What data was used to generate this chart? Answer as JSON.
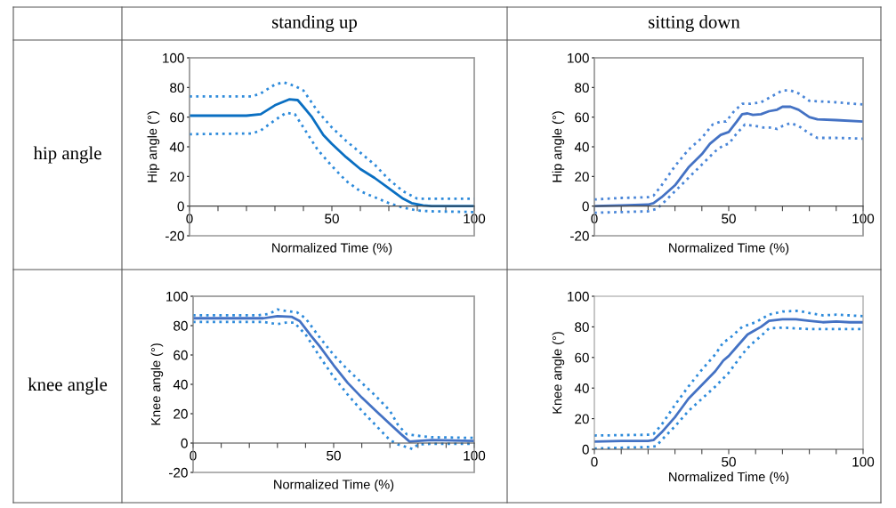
{
  "chart_data": [
    {
      "type": "other",
      "annotations": [
        "standing up",
        "sitting down",
        "hip angle",
        "knee angle"
      ]
    },
    {
      "type": "line",
      "xlabel": "Normalized Time (%)",
      "ylabel": "Hip angle (°)",
      "xlim": [
        0,
        100
      ],
      "ylim": [
        -20,
        100
      ],
      "xticks": [
        0,
        {
          "value": 10,
          "label": null
        },
        {
          "value": 20,
          "label": null
        },
        {
          "value": 30,
          "label": null
        },
        {
          "value": 40,
          "label": null
        },
        50,
        {
          "value": 60,
          "label": null
        },
        {
          "value": 70,
          "label": null
        },
        {
          "value": 80,
          "label": null
        },
        {
          "value": 90,
          "label": null
        },
        100
      ],
      "yticks": [
        -20,
        0,
        20,
        40,
        60,
        80,
        100
      ],
      "grid": false,
      "series": [
        {
          "color": "#0a6fc2",
          "line_style": "solid",
          "x": [
            0,
            20,
            25,
            30,
            35,
            38,
            40,
            43,
            47,
            50,
            55,
            60,
            65,
            70,
            75,
            78,
            82,
            85,
            100
          ],
          "values": [
            61,
            61,
            62,
            68,
            72,
            71.5,
            67,
            60,
            48,
            42,
            33,
            25,
            19,
            12,
            5,
            2,
            0.5,
            0,
            0
          ]
        },
        {
          "color": "#2e8bdb",
          "line_style": "dotted",
          "x": [
            0,
            22,
            25,
            30,
            33,
            37,
            40,
            45,
            50,
            55,
            60,
            65,
            70,
            75,
            80,
            85,
            100
          ],
          "values": [
            74,
            74,
            76,
            82,
            83.5,
            81,
            78,
            64,
            53,
            44,
            36,
            28,
            18,
            10,
            5,
            5,
            5
          ]
        },
        {
          "color": "#2e8bdb",
          "line_style": "dotted",
          "x": [
            0,
            22,
            25,
            30,
            34,
            37,
            40,
            45,
            50,
            55,
            60,
            65,
            70,
            75,
            80,
            85,
            100
          ],
          "values": [
            48.5,
            49,
            51,
            58,
            63,
            62,
            53,
            38,
            27,
            17,
            10,
            6,
            2,
            -1,
            -3,
            -3.5,
            -4
          ]
        }
      ]
    },
    {
      "type": "line",
      "xlabel": "Normalized Time (%)",
      "ylabel": "Hip angle (°)",
      "xlim": [
        0,
        100
      ],
      "ylim": [
        -20,
        100
      ],
      "xticks": [
        0,
        {
          "value": 10,
          "label": null
        },
        {
          "value": 20,
          "label": null
        },
        {
          "value": 30,
          "label": null
        },
        {
          "value": 40,
          "label": null
        },
        50,
        {
          "value": 60,
          "label": null
        },
        {
          "value": 70,
          "label": null
        },
        {
          "value": 80,
          "label": null
        },
        {
          "value": 90,
          "label": null
        },
        100
      ],
      "yticks": [
        -20,
        0,
        20,
        40,
        60,
        80,
        100
      ],
      "grid": false,
      "series": [
        {
          "color": "#4472c4",
          "line_style": "solid",
          "x": [
            0,
            10,
            20,
            22,
            25,
            30,
            35,
            40,
            43,
            47,
            50,
            53,
            55,
            57,
            59,
            62,
            65,
            68,
            70,
            73,
            76,
            80,
            83,
            90,
            100
          ],
          "values": [
            0,
            0.5,
            1,
            2,
            6,
            14,
            26,
            35,
            42,
            48,
            50,
            57,
            62,
            62.5,
            61.5,
            62,
            64,
            65,
            67,
            67,
            65,
            60,
            58.5,
            58,
            57
          ]
        },
        {
          "color": "#4a86d8",
          "line_style": "dotted",
          "x": [
            0,
            10,
            20,
            22,
            25,
            30,
            35,
            40,
            44,
            47,
            49,
            52,
            55,
            58,
            62,
            65,
            70,
            73,
            76,
            80,
            85,
            90,
            100
          ],
          "values": [
            4.5,
            5.5,
            6,
            7,
            14,
            27,
            38,
            46,
            55,
            57,
            57,
            64,
            69,
            69,
            70,
            73,
            78,
            78,
            76,
            71,
            70.5,
            70,
            68.5
          ]
        },
        {
          "color": "#4a86d8",
          "line_style": "dotted",
          "x": [
            0,
            10,
            20,
            23,
            25,
            30,
            35,
            40,
            45,
            48,
            50,
            53,
            56,
            60,
            63,
            66,
            68,
            70,
            73,
            76,
            80,
            83,
            90,
            100
          ],
          "values": [
            -4.5,
            -4,
            -3.5,
            -2,
            1,
            10,
            19,
            28,
            37,
            41,
            42,
            49,
            55,
            54,
            53,
            53,
            52,
            54,
            56,
            54,
            49,
            46,
            46,
            45.5
          ]
        }
      ]
    },
    {
      "type": "line",
      "xlabel": "Normalized Time (%)",
      "ylabel": "Knee angle (°)",
      "xlim": [
        0,
        100
      ],
      "ylim": [
        -20,
        100
      ],
      "xticks": [
        0,
        {
          "value": 10,
          "label": null
        },
        {
          "value": 20,
          "label": null
        },
        {
          "value": 30,
          "label": null
        },
        {
          "value": 40,
          "label": null
        },
        50,
        {
          "value": 60,
          "label": null
        },
        {
          "value": 70,
          "label": null
        },
        {
          "value": 80,
          "label": null
        },
        {
          "value": 90,
          "label": null
        },
        100
      ],
      "yticks": [
        -20,
        0,
        20,
        40,
        60,
        80,
        100
      ],
      "grid": false,
      "series": [
        {
          "color": "#4472c4",
          "line_style": "solid",
          "x": [
            0,
            25,
            30,
            35,
            38,
            42,
            45,
            50,
            55,
            60,
            65,
            70,
            74,
            77,
            80,
            85,
            100
          ],
          "values": [
            85,
            85,
            86.5,
            86,
            83,
            73,
            66,
            53,
            41,
            31,
            22,
            13,
            6,
            1,
            1.5,
            2,
            1.5
          ]
        },
        {
          "color": "#2e8bdb",
          "line_style": "dotted",
          "x": [
            0,
            23,
            27,
            30,
            33,
            37,
            40,
            45,
            50,
            55,
            60,
            65,
            70,
            73,
            76,
            80,
            85,
            100
          ],
          "values": [
            87,
            87,
            88,
            91,
            90,
            89,
            85,
            72,
            60,
            50,
            41,
            32,
            22,
            12,
            6,
            5,
            4,
            3.5
          ]
        },
        {
          "color": "#2e8bdb",
          "line_style": "dotted",
          "x": [
            0,
            25,
            30,
            33,
            36,
            40,
            45,
            50,
            55,
            60,
            65,
            70,
            73,
            78,
            80,
            85,
            100
          ],
          "values": [
            82.5,
            82.5,
            81,
            82,
            82,
            74,
            59,
            45,
            33,
            22,
            12,
            2,
            -1,
            -4,
            -1,
            -0.5,
            -0.5
          ]
        }
      ]
    },
    {
      "type": "line",
      "xlabel": "Normalized Time (%)",
      "ylabel": "Knee angle (°)",
      "xlim": [
        0,
        100
      ],
      "ylim": [
        0,
        100
      ],
      "xticks": [
        0,
        {
          "value": 10,
          "label": null
        },
        {
          "value": 20,
          "label": null
        },
        {
          "value": 30,
          "label": null
        },
        {
          "value": 40,
          "label": null
        },
        50,
        {
          "value": 60,
          "label": null
        },
        {
          "value": 70,
          "label": null
        },
        {
          "value": 80,
          "label": null
        },
        {
          "value": 90,
          "label": null
        },
        100
      ],
      "yticks": [
        0,
        20,
        40,
        60,
        80,
        100
      ],
      "grid": false,
      "series": [
        {
          "color": "#4472c4",
          "line_style": "solid",
          "x": [
            0,
            10,
            20,
            22,
            25,
            30,
            35,
            40,
            45,
            48,
            50,
            53,
            57,
            59,
            62,
            65,
            70,
            75,
            80,
            85,
            90,
            95,
            100
          ],
          "values": [
            5,
            5.5,
            5.5,
            6,
            11,
            21,
            33,
            42,
            51,
            58,
            61,
            67,
            75,
            77,
            80,
            84,
            85,
            85,
            84,
            83,
            83.5,
            83,
            83
          ]
        },
        {
          "color": "#2e8bdb",
          "line_style": "dotted",
          "x": [
            0,
            20,
            22,
            25,
            30,
            35,
            40,
            45,
            48,
            50,
            55,
            60,
            65,
            70,
            76,
            80,
            85,
            90,
            95,
            100
          ],
          "values": [
            9,
            9.5,
            10,
            16,
            29,
            41,
            52,
            62,
            70,
            72,
            80,
            83,
            88,
            90,
            90.5,
            89,
            87.5,
            88,
            87.5,
            87
          ]
        },
        {
          "color": "#2e8bdb",
          "line_style": "dotted",
          "x": [
            0,
            20,
            23,
            25,
            30,
            35,
            40,
            45,
            50,
            55,
            58,
            62,
            65,
            70,
            80,
            90,
            100
          ],
          "values": [
            0.5,
            1.5,
            2,
            6,
            15,
            25,
            33,
            41,
            50,
            62,
            68,
            74,
            79,
            79.5,
            78.5,
            78.5,
            78.5
          ]
        }
      ]
    }
  ]
}
